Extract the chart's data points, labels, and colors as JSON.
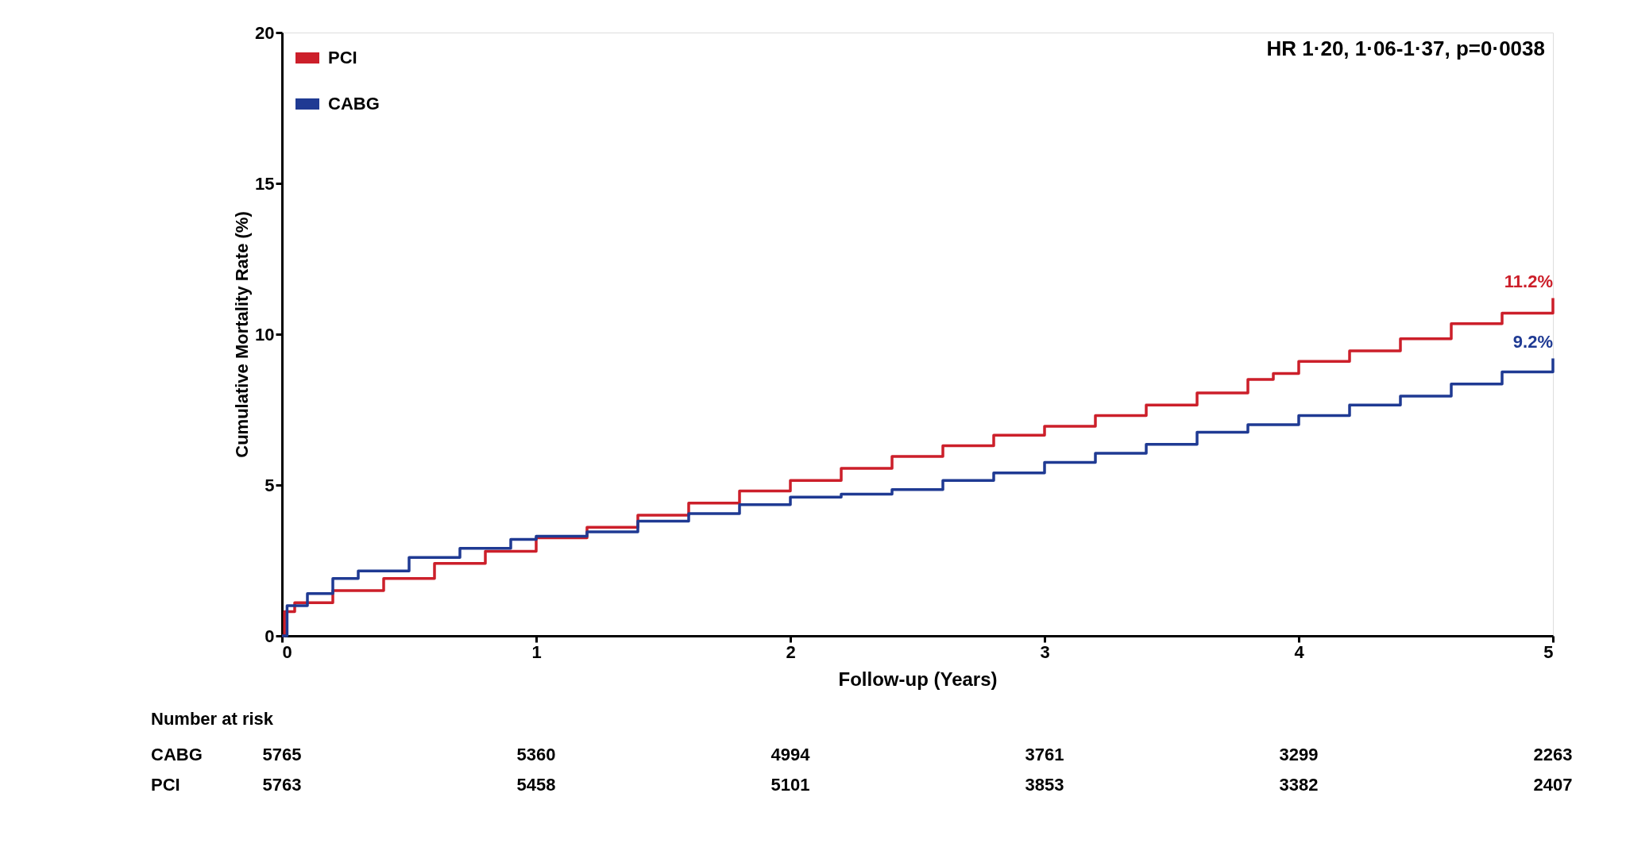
{
  "chart_data": {
    "type": "step",
    "xlabel": "Follow-up (Years)",
    "ylabel": "Cumulative Mortality Rate (%)",
    "xlim": [
      0,
      5
    ],
    "xticks": [
      0,
      1,
      2,
      3,
      4,
      5
    ],
    "ylim": [
      0,
      20
    ],
    "yticks": [
      0,
      5,
      10,
      15,
      20
    ],
    "grid": false,
    "legend": "top left",
    "marker": "none",
    "line_style": "solid",
    "series": [
      {
        "name": "PCI",
        "color": "#cc1f2a",
        "x": [
          0,
          0.01,
          0.05,
          0.2,
          0.4,
          0.6,
          0.8,
          1.0,
          1.2,
          1.4,
          1.6,
          1.8,
          2.0,
          2.2,
          2.4,
          2.6,
          2.8,
          3.0,
          3.2,
          3.4,
          3.6,
          3.8,
          3.9,
          4.0,
          4.2,
          4.4,
          4.6,
          4.8,
          5.0
        ],
        "values": [
          0,
          0.8,
          1.1,
          1.5,
          1.9,
          2.4,
          2.8,
          3.25,
          3.6,
          4.0,
          4.4,
          4.8,
          5.15,
          5.55,
          5.95,
          6.3,
          6.65,
          6.95,
          7.3,
          7.65,
          8.05,
          8.5,
          8.7,
          9.1,
          9.45,
          9.85,
          10.35,
          10.7,
          11.2
        ]
      },
      {
        "name": "CABG",
        "color": "#1f3a93",
        "x": [
          0,
          0.02,
          0.1,
          0.2,
          0.3,
          0.5,
          0.7,
          0.9,
          1.0,
          1.2,
          1.4,
          1.6,
          1.8,
          2.0,
          2.2,
          2.4,
          2.6,
          2.8,
          3.0,
          3.2,
          3.4,
          3.6,
          3.8,
          4.0,
          4.2,
          4.4,
          4.6,
          4.8,
          5.0
        ],
        "values": [
          0,
          1.0,
          1.4,
          1.9,
          2.15,
          2.6,
          2.9,
          3.2,
          3.3,
          3.45,
          3.8,
          4.05,
          4.35,
          4.6,
          4.7,
          4.85,
          5.15,
          5.4,
          5.75,
          6.05,
          6.35,
          6.75,
          7.0,
          7.3,
          7.65,
          7.95,
          8.35,
          8.75,
          9.2
        ]
      }
    ],
    "annotations": [
      "HR 1·20, 1·06-1·37, p=0·0038",
      {
        "text": "11.2%",
        "x": 5,
        "y": 11.2
      },
      {
        "text": "9.2%",
        "x": 5,
        "y": 9.2
      },
      "Number at risk",
      "CABG 5765 5360 4994 3761 3299 2263",
      "PCI 5763 5458 5101 3853 3382 2407"
    ]
  }
}
